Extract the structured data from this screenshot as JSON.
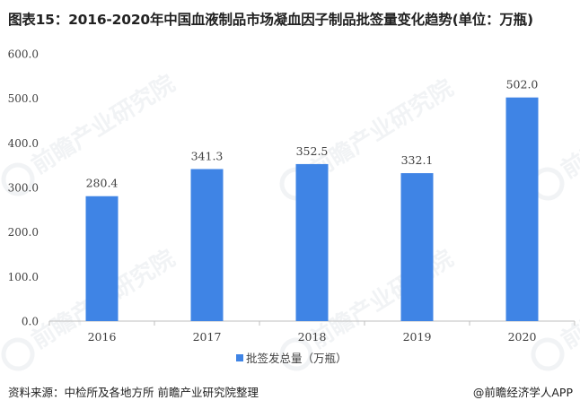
{
  "title": "图表15：2016-2020年中国血液制品市场凝血因子制品批签量变化趋势(单位：万瓶)",
  "source_text": "资料来源：中检所及各地方所 前瞻产业研究院整理",
  "brand_text": "@前瞻经济学人APP",
  "watermark_text": "前瞻产业研究院",
  "colors": {
    "bar": "#3F84E5",
    "axis": "#BFBFBF",
    "text": "#404040"
  },
  "chart_data": {
    "type": "bar",
    "title": "图表15：2016-2020年中国血液制品市场凝血因子制品批签量变化趋势(单位：万瓶)",
    "categories": [
      "2016",
      "2017",
      "2018",
      "2019",
      "2020"
    ],
    "series": [
      {
        "name": "批签发总量（万瓶）",
        "values": [
          280.4,
          341.3,
          352.5,
          332.1,
          502.0
        ]
      }
    ],
    "data_labels": [
      "280.4",
      "341.3",
      "352.5",
      "332.1",
      "502.0"
    ],
    "y_ticks": [
      "0.0",
      "100.0",
      "200.0",
      "300.0",
      "400.0",
      "500.0",
      "600.0"
    ],
    "ylim": [
      0,
      600
    ],
    "grid": false,
    "legend_position": "bottom"
  }
}
